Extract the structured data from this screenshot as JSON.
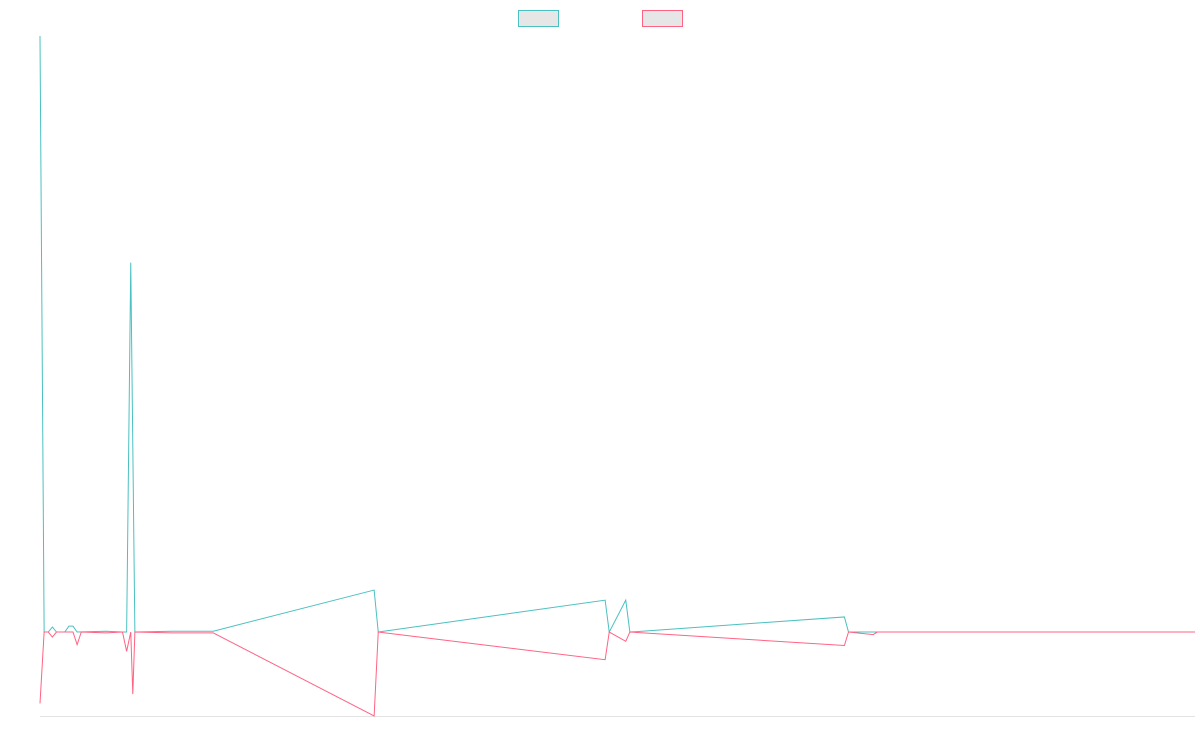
{
  "chart_data": {
    "type": "line",
    "title": "",
    "xlabel": "",
    "ylabel": "",
    "grid": false,
    "legend_position": "top-center",
    "x": [
      0,
      1,
      2,
      3,
      4,
      5,
      6,
      7,
      8,
      9,
      10,
      11,
      12,
      13,
      14,
      15,
      16,
      17,
      18,
      19,
      20,
      21,
      22,
      23,
      24,
      25,
      26,
      27,
      28,
      29,
      30,
      31,
      32,
      33,
      34,
      35,
      36,
      37,
      38,
      39,
      40,
      41,
      42,
      43,
      44,
      45,
      46,
      47,
      48,
      49,
      50,
      51,
      52,
      53,
      54,
      55,
      56,
      57,
      58,
      59,
      60,
      61,
      62,
      63,
      64,
      65,
      66,
      67,
      68,
      69,
      70,
      71,
      72,
      73,
      74,
      75,
      76,
      77,
      78,
      79,
      80,
      81,
      82,
      83,
      84,
      85,
      86,
      87,
      88,
      89,
      90,
      91,
      92,
      93,
      94,
      95,
      96,
      97,
      98,
      99,
      100,
      101,
      102,
      103,
      104,
      105,
      106,
      107,
      108,
      109,
      110,
      111,
      112,
      113,
      114,
      115,
      116,
      117,
      118,
      119,
      120,
      121,
      122,
      123,
      124,
      125,
      126,
      127,
      128,
      129,
      130,
      131,
      132,
      133,
      134,
      135,
      136,
      137,
      138,
      139,
      140,
      141,
      142,
      143,
      144,
      145,
      146,
      147,
      148,
      149,
      150,
      151,
      152,
      153,
      154,
      155,
      156,
      157,
      158,
      159,
      160,
      161,
      162,
      163,
      164,
      165,
      166,
      167,
      168,
      169,
      170,
      171,
      172,
      173,
      174,
      175,
      176,
      177,
      178,
      179,
      180,
      181,
      182,
      183,
      184,
      185,
      186,
      187,
      188,
      189,
      190,
      191,
      192,
      193,
      194,
      195,
      196,
      197,
      198,
      199,
      200,
      201,
      202,
      203,
      204,
      205,
      206,
      207,
      208,
      209,
      210,
      211,
      212,
      213,
      214,
      215,
      216,
      217,
      218,
      219,
      220,
      221,
      222,
      223,
      224,
      225,
      226,
      227,
      228,
      229,
      230,
      231,
      232,
      233,
      234,
      235,
      236,
      237,
      238,
      239,
      240,
      241,
      242,
      243,
      244,
      245,
      246,
      247,
      248,
      249,
      250,
      251,
      252,
      253,
      254,
      255,
      256,
      257,
      258,
      259,
      260,
      261,
      262,
      263,
      264,
      265,
      266,
      267,
      268,
      269,
      270,
      271,
      272,
      273,
      274,
      275,
      276,
      277,
      278,
      279,
      280
    ],
    "ylim": [
      -10,
      71
    ],
    "series": [
      {
        "name": "",
        "color": "#4bc0c0",
        "points": [
          [
            0,
            71
          ],
          [
            1,
            0
          ],
          [
            2,
            0
          ],
          [
            3,
            0.6
          ],
          [
            4,
            0
          ],
          [
            5,
            0
          ],
          [
            6,
            0
          ],
          [
            7,
            0.7
          ],
          [
            8,
            0.7
          ],
          [
            9,
            0
          ],
          [
            16,
            0.1
          ],
          [
            20,
            0
          ],
          [
            21,
            0
          ],
          [
            22,
            44
          ],
          [
            23,
            0
          ],
          [
            32,
            0.1
          ],
          [
            42,
            0.1
          ],
          [
            81,
            5
          ],
          [
            82,
            0
          ],
          [
            137,
            3.8
          ],
          [
            138,
            0
          ],
          [
            142,
            3.8
          ],
          [
            143,
            0
          ],
          [
            195,
            1.8
          ],
          [
            196,
            0
          ],
          [
            280,
            0
          ]
        ]
      },
      {
        "name": "",
        "color": "#ff6384",
        "points": [
          [
            0,
            -8.5
          ],
          [
            1,
            0
          ],
          [
            2,
            0
          ],
          [
            3,
            -0.6
          ],
          [
            4,
            0
          ],
          [
            5,
            0
          ],
          [
            6,
            0
          ],
          [
            8,
            0
          ],
          [
            9,
            -1.5
          ],
          [
            10,
            0
          ],
          [
            16,
            -0.1
          ],
          [
            20,
            0
          ],
          [
            21,
            -2.3
          ],
          [
            22,
            0
          ],
          [
            22.5,
            -7.4
          ],
          [
            23,
            0
          ],
          [
            32,
            -0.1
          ],
          [
            42,
            -0.1
          ],
          [
            81,
            -10
          ],
          [
            82,
            0
          ],
          [
            137,
            -3.3
          ],
          [
            138,
            0
          ],
          [
            142,
            -1.1
          ],
          [
            143,
            0
          ],
          [
            195,
            -1.6
          ],
          [
            196,
            0
          ],
          [
            202,
            -0.3
          ],
          [
            203,
            0
          ],
          [
            280,
            0
          ]
        ]
      }
    ]
  }
}
